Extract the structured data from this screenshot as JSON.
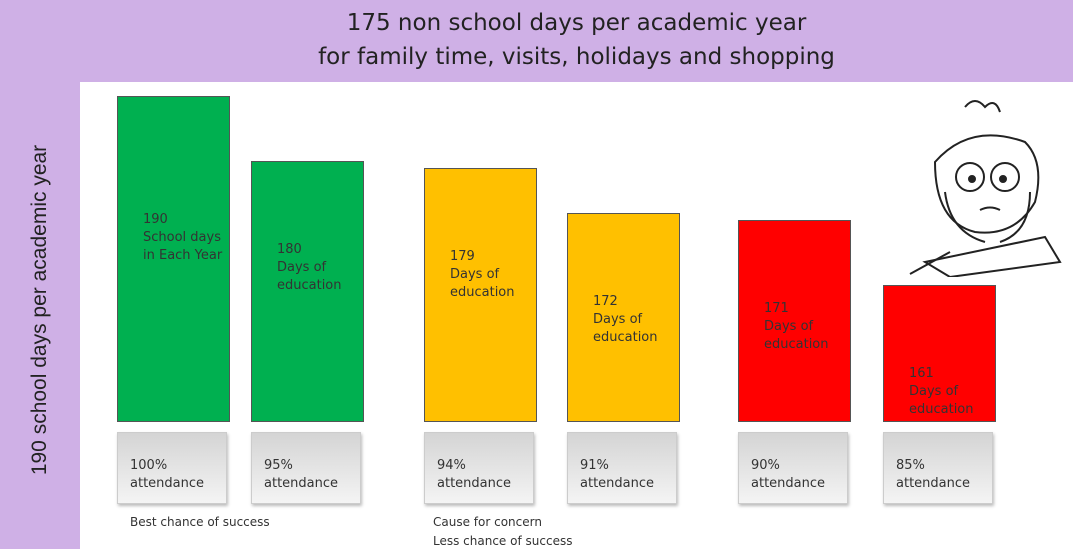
{
  "chart_data": {
    "type": "bar",
    "title": "175 non school days per academic  year",
    "subtitle": "for family time, visits, holidays and shopping",
    "ylabel": "190 school days per academic year",
    "categories": [
      "100% attendance",
      "95% attendance",
      "94% attendance",
      "91% attendance",
      "90% attendance",
      "85% attendance"
    ],
    "values": [
      190,
      180,
      179,
      172,
      171,
      161
    ],
    "bar_texts": [
      "School days in Each Year",
      "Days of education",
      "Days of education",
      "Days of education",
      "Days of education",
      "Days of education"
    ],
    "colors": [
      "#00b050",
      "#00b050",
      "#ffc000",
      "#ffc000",
      "#ff0000",
      "#ff0000"
    ],
    "ylim": [
      140,
      190
    ],
    "annotations": [
      "Best chance of success",
      "Cause for concern",
      "Less chance of success"
    ]
  }
}
